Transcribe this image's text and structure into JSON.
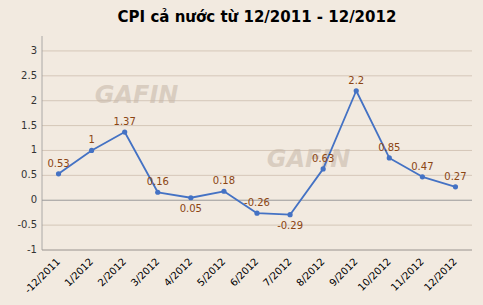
{
  "chart_data": {
    "type": "line",
    "title": "CPI cả nước từ 12/2011 - 12/2012",
    "categories": [
      "-12/2011",
      "1/2012",
      "2/2012",
      "3/2012",
      "4/2012",
      "5/2012",
      "6/2012",
      "7/2012",
      "8/2012",
      "9/2012",
      "10/2012",
      "11/2012",
      "12/2012"
    ],
    "values": [
      0.53,
      1.0,
      1.37,
      0.16,
      0.05,
      0.18,
      -0.26,
      -0.29,
      0.63,
      2.2,
      0.85,
      0.47,
      0.27
    ],
    "color": "#4472C4",
    "ylim": [
      -1.0,
      3.3
    ],
    "yticks": [
      -1,
      -0.5,
      0,
      0.5,
      1,
      1.5,
      2,
      2.5,
      3
    ],
    "grid": true,
    "data_labels": true,
    "marker": "circle",
    "annotations": [
      "GAFIN",
      "GAFIN"
    ]
  }
}
